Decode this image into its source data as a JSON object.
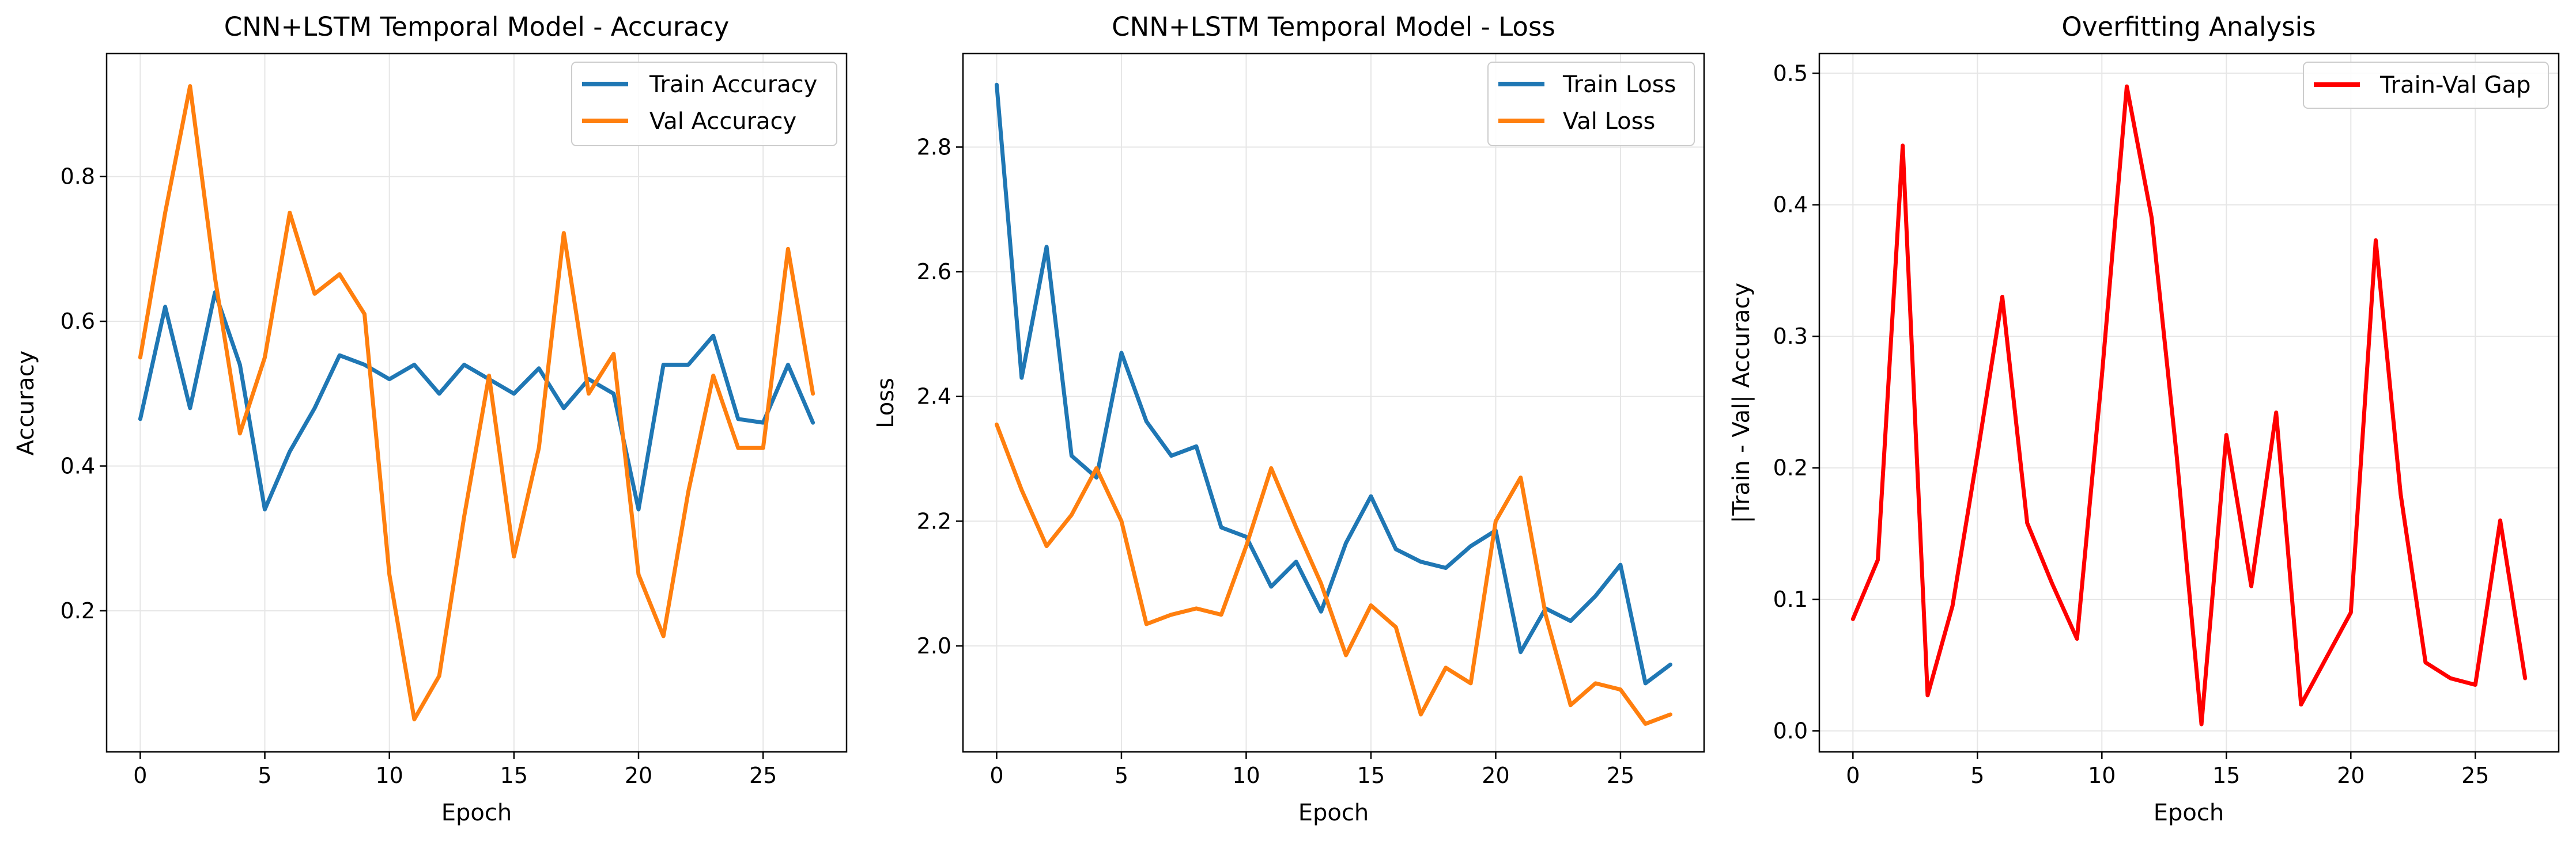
{
  "chart_data": [
    {
      "type": "line",
      "title": "CNN+LSTM Temporal Model - Accuracy",
      "xlabel": "Epoch",
      "ylabel": "Accuracy",
      "xlim": [
        -1.35,
        28.35
      ],
      "ylim": [
        0.005,
        0.97
      ],
      "xticks": [
        0,
        5,
        10,
        15,
        20,
        25
      ],
      "yticks": [
        0.2,
        0.4,
        0.6,
        0.8
      ],
      "ytick_labels": [
        "0.2",
        "0.4",
        "0.6",
        "0.8"
      ],
      "grid": true,
      "legend_position": "upper right",
      "x": [
        0,
        1,
        2,
        3,
        4,
        5,
        6,
        7,
        8,
        9,
        10,
        11,
        12,
        13,
        14,
        15,
        16,
        17,
        18,
        19,
        20,
        21,
        22,
        23,
        24,
        25,
        26,
        27
      ],
      "series": [
        {
          "name": "Train Accuracy",
          "color": "#1f77b4",
          "values": [
            0.465,
            0.62,
            0.48,
            0.64,
            0.54,
            0.34,
            0.42,
            0.48,
            0.553,
            0.54,
            0.52,
            0.54,
            0.5,
            0.54,
            0.52,
            0.5,
            0.535,
            0.48,
            0.52,
            0.5,
            0.34,
            0.54,
            0.54,
            0.58,
            0.465,
            0.46,
            0.54,
            0.46
          ]
        },
        {
          "name": "Val Accuracy",
          "color": "#ff7f0e",
          "values": [
            0.55,
            0.75,
            0.925,
            0.66,
            0.445,
            0.55,
            0.75,
            0.638,
            0.665,
            0.61,
            0.25,
            0.05,
            0.11,
            0.33,
            0.525,
            0.275,
            0.425,
            0.722,
            0.5,
            0.555,
            0.25,
            0.165,
            0.365,
            0.525,
            0.425,
            0.425,
            0.7,
            0.5
          ]
        }
      ]
    },
    {
      "type": "line",
      "title": "CNN+LSTM Temporal Model - Loss",
      "xlabel": "Epoch",
      "ylabel": "Loss",
      "xlim": [
        -1.35,
        28.35
      ],
      "ylim": [
        1.83,
        2.95
      ],
      "xticks": [
        0,
        5,
        10,
        15,
        20,
        25
      ],
      "yticks": [
        2.0,
        2.2,
        2.4,
        2.6,
        2.8
      ],
      "ytick_labels": [
        "2.0",
        "2.2",
        "2.4",
        "2.6",
        "2.8"
      ],
      "grid": true,
      "legend_position": "upper right",
      "x": [
        0,
        1,
        2,
        3,
        4,
        5,
        6,
        7,
        8,
        9,
        10,
        11,
        12,
        13,
        14,
        15,
        16,
        17,
        18,
        19,
        20,
        21,
        22,
        23,
        24,
        25,
        26,
        27
      ],
      "series": [
        {
          "name": "Train Loss",
          "color": "#1f77b4",
          "values": [
            2.9,
            2.43,
            2.64,
            2.305,
            2.27,
            2.47,
            2.36,
            2.305,
            2.32,
            2.19,
            2.175,
            2.095,
            2.135,
            2.055,
            2.165,
            2.24,
            2.155,
            2.135,
            2.125,
            2.16,
            2.185,
            1.99,
            2.06,
            2.04,
            2.08,
            2.13,
            1.94,
            1.97
          ]
        },
        {
          "name": "Val Loss",
          "color": "#ff7f0e",
          "values": [
            2.355,
            2.25,
            2.16,
            2.21,
            2.285,
            2.2,
            2.035,
            2.05,
            2.06,
            2.05,
            2.16,
            2.285,
            2.19,
            2.1,
            1.985,
            2.065,
            2.03,
            1.89,
            1.965,
            1.94,
            2.2,
            2.27,
            2.05,
            1.905,
            1.94,
            1.93,
            1.875,
            1.89
          ]
        }
      ]
    },
    {
      "type": "line",
      "title": "Overfitting Analysis",
      "xlabel": "Epoch",
      "ylabel": "|Train - Val| Accuracy",
      "xlim": [
        -1.35,
        28.35
      ],
      "ylim": [
        -0.016,
        0.515
      ],
      "xticks": [
        0,
        5,
        10,
        15,
        20,
        25
      ],
      "yticks": [
        0.0,
        0.1,
        0.2,
        0.3,
        0.4,
        0.5
      ],
      "ytick_labels": [
        "0.0",
        "0.1",
        "0.2",
        "0.3",
        "0.4",
        "0.5"
      ],
      "grid": true,
      "legend_position": "upper right",
      "x": [
        0,
        1,
        2,
        3,
        4,
        5,
        6,
        7,
        8,
        9,
        10,
        11,
        12,
        13,
        14,
        15,
        16,
        17,
        18,
        19,
        20,
        21,
        22,
        23,
        24,
        25,
        26,
        27
      ],
      "series": [
        {
          "name": "Train-Val Gap",
          "color": "#ff0000",
          "values": [
            0.085,
            0.13,
            0.445,
            0.027,
            0.095,
            0.21,
            0.33,
            0.158,
            0.112,
            0.07,
            0.27,
            0.49,
            0.39,
            0.21,
            0.005,
            0.225,
            0.11,
            0.242,
            0.02,
            0.055,
            0.09,
            0.373,
            0.18,
            0.052,
            0.04,
            0.035,
            0.16,
            0.04
          ]
        }
      ]
    }
  ]
}
